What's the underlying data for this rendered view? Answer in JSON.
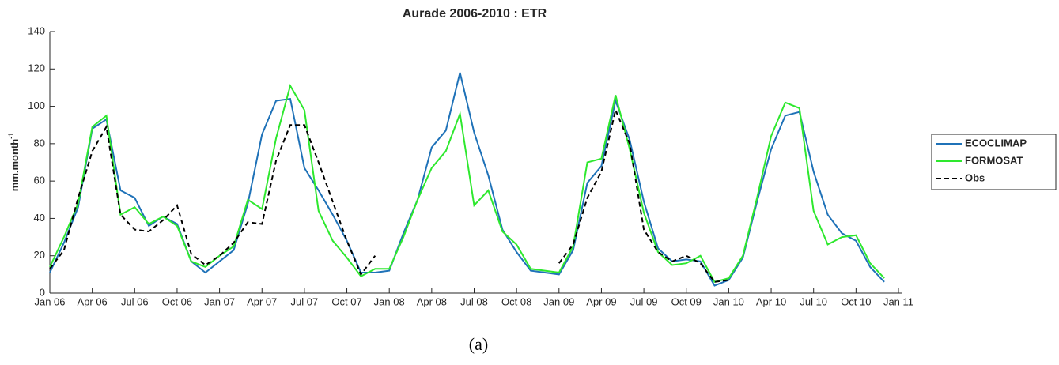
{
  "chart_data": {
    "type": "line",
    "title": "Aurade 2006-2010 : ETR",
    "ylabel": {
      "text": "mm.month",
      "superscript": "-1"
    },
    "caption": "(a)",
    "categories": [
      "Jan 06",
      null,
      null,
      "Apr 06",
      null,
      null,
      "Jul 06",
      null,
      null,
      "Oct 06",
      null,
      null,
      "Jan 07",
      null,
      null,
      "Apr 07",
      null,
      null,
      "Jul 07",
      null,
      null,
      "Oct 07",
      null,
      null,
      "Jan 08",
      null,
      null,
      "Apr 08",
      null,
      null,
      "Jul 08",
      null,
      null,
      "Oct 08",
      null,
      null,
      "Jan 09",
      null,
      null,
      "Apr 09",
      null,
      null,
      "Jul 09",
      null,
      null,
      "Oct 09",
      null,
      null,
      "Jan 10",
      null,
      null,
      "Apr 10",
      null,
      null,
      "Jul 10",
      null,
      null,
      "Oct 10",
      null,
      null,
      "Jan 11"
    ],
    "series": [
      {
        "name": "ECOCLIMAP",
        "color": "#1f72b8",
        "linestyle": "solid",
        "values": [
          11,
          27,
          46,
          88,
          93,
          55,
          51,
          36,
          41,
          37,
          17,
          11,
          17,
          23,
          48,
          85,
          103,
          104,
          67,
          55,
          42,
          28,
          11,
          11,
          12,
          32,
          50,
          78,
          87,
          118,
          86,
          63,
          34,
          22,
          12,
          11,
          10,
          23,
          59,
          68,
          103,
          82,
          49,
          24,
          17,
          18,
          17,
          4,
          7,
          19,
          49,
          77,
          95,
          97,
          65,
          42,
          32,
          28,
          14,
          6,
          null
        ]
      },
      {
        "name": "FORMOSAT",
        "color": "#2ee82e",
        "linestyle": "solid",
        "values": [
          14,
          30,
          48,
          89,
          95,
          42,
          46,
          37,
          41,
          36,
          17,
          14,
          20,
          25,
          50,
          45,
          83,
          111,
          98,
          44,
          28,
          19,
          9,
          13,
          13,
          30,
          50,
          67,
          76,
          96,
          47,
          55,
          33,
          26,
          13,
          12,
          11,
          25,
          70,
          72,
          106,
          77,
          43,
          22,
          15,
          16,
          20,
          6,
          8,
          20,
          51,
          84,
          102,
          99,
          44,
          26,
          30,
          31,
          16,
          8,
          null
        ]
      },
      {
        "name": "Obs",
        "color": "#000000",
        "linestyle": "dashed",
        "values": [
          13,
          23,
          51,
          76,
          89,
          42,
          34,
          33,
          39,
          47,
          21,
          15,
          20,
          27,
          38,
          37,
          71,
          90,
          90,
          70,
          49,
          28,
          10,
          20,
          null,
          null,
          null,
          null,
          null,
          null,
          null,
          null,
          null,
          null,
          null,
          null,
          16,
          26,
          51,
          65,
          98,
          80,
          34,
          22,
          17,
          20,
          16,
          6,
          7,
          null,
          null,
          null,
          null,
          null,
          null,
          null,
          null,
          null,
          null,
          null,
          null
        ]
      }
    ],
    "ylim": [
      0,
      140
    ],
    "yticks": [
      0,
      20,
      40,
      60,
      80,
      100,
      120,
      140
    ],
    "grid": false,
    "legend": "right"
  }
}
